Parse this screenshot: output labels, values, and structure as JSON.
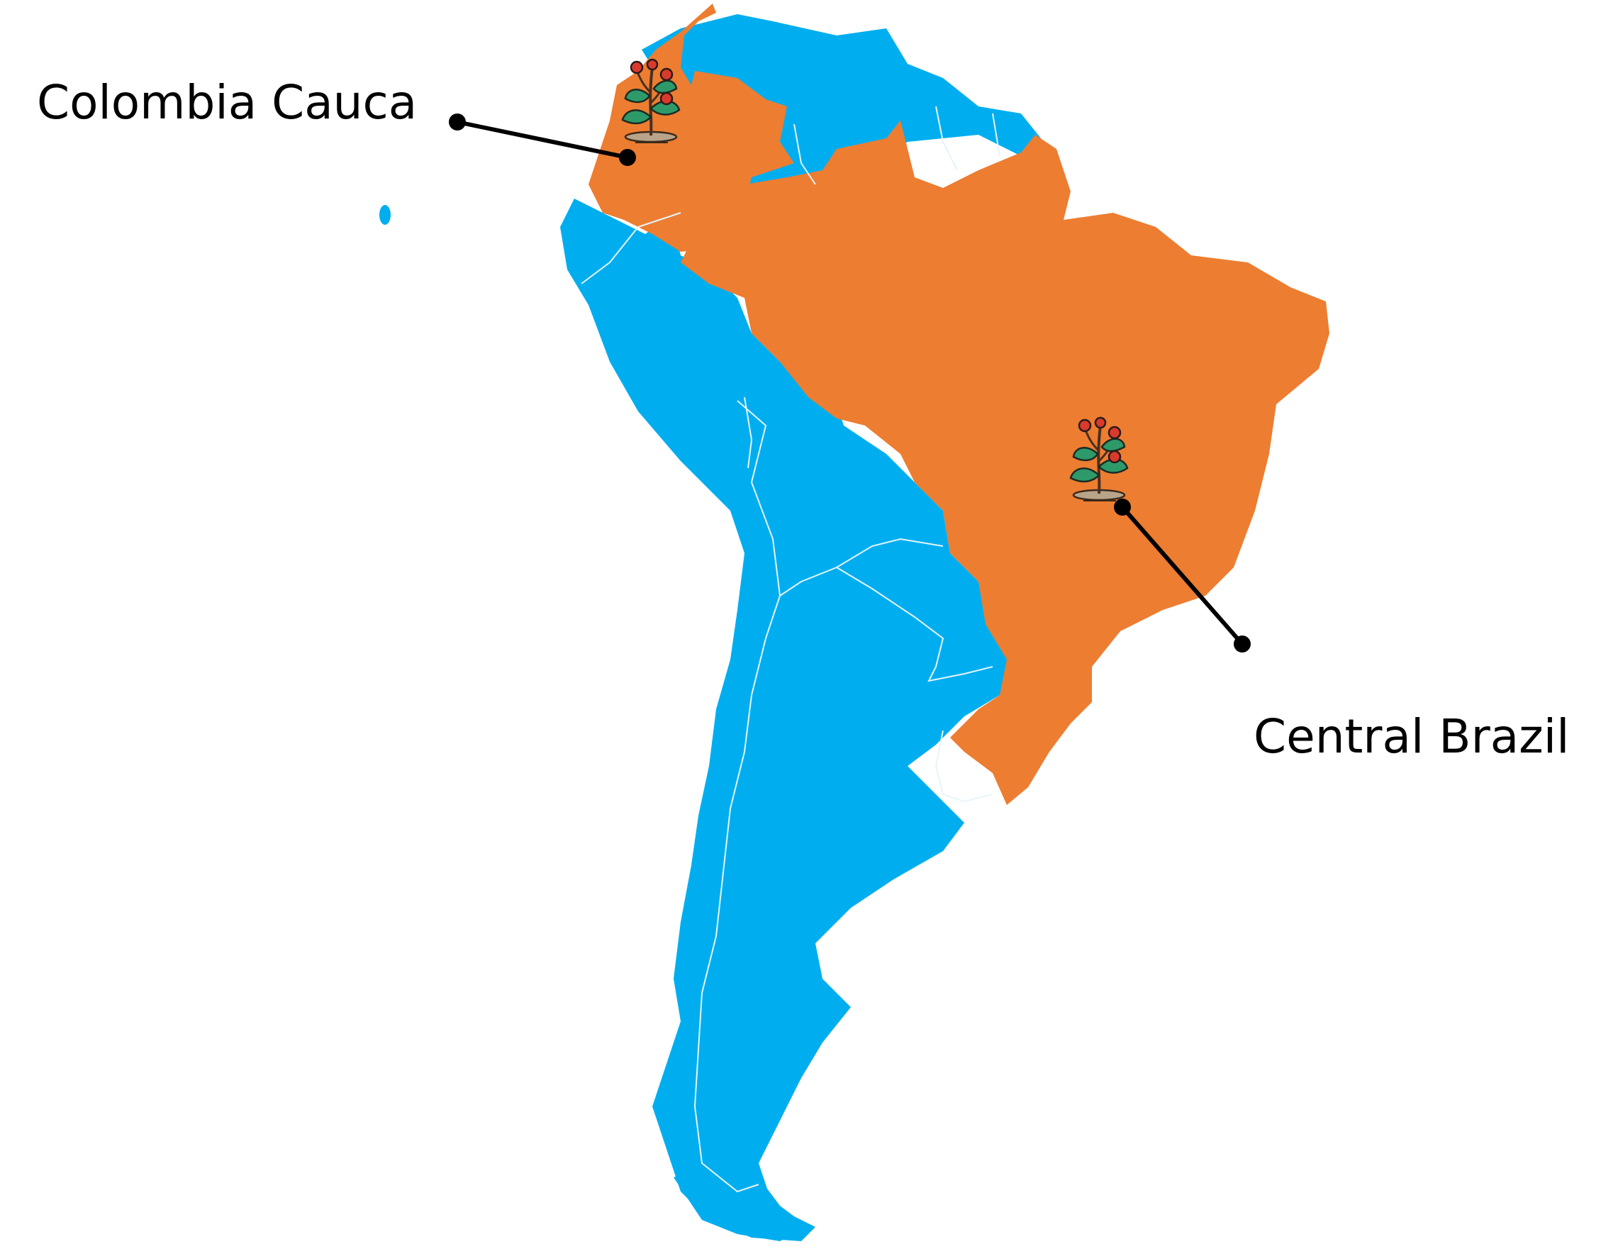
{
  "map": {
    "colors": {
      "other_countries": "#00AEEF",
      "highlighted_countries": "#ED7D31",
      "borders": "#E6F4FB",
      "callout_line": "#000000"
    },
    "highlighted_countries": [
      "Colombia",
      "Brazil"
    ],
    "icons": [
      "coffee-plant-icon",
      "coffee-plant-icon"
    ],
    "callouts": [
      {
        "label": "Colombia Cauca",
        "icon": "coffee-plant-icon"
      },
      {
        "label": "Central Brazil",
        "icon": "coffee-plant-icon"
      }
    ]
  }
}
